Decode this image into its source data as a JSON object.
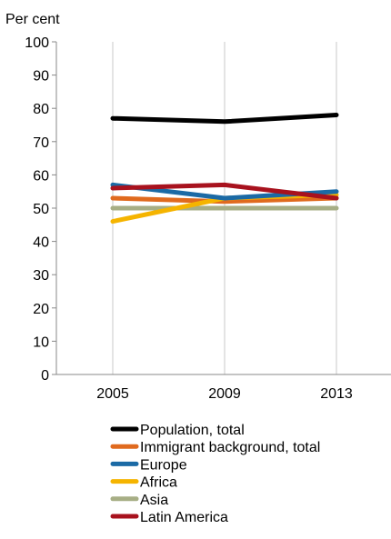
{
  "chart_data": {
    "type": "line",
    "ylabel": "Per cent",
    "x": [
      "2005",
      "2009",
      "2013"
    ],
    "ylim": [
      0,
      100
    ],
    "yticks": [
      "0",
      "10",
      "20",
      "30",
      "40",
      "50",
      "60",
      "70",
      "80",
      "90",
      "100"
    ],
    "grid": "vertical",
    "legend": "bottom",
    "series": [
      {
        "name": "Population, total",
        "color": "#000000",
        "values": [
          77,
          76,
          78
        ]
      },
      {
        "name": "Immigrant background, total",
        "color": "#e06a1e",
        "values": [
          53,
          52,
          53
        ]
      },
      {
        "name": "Europe",
        "color": "#1b6aa5",
        "values": [
          57,
          53,
          55
        ]
      },
      {
        "name": "Africa",
        "color": "#f5b400",
        "values": [
          46,
          53,
          54
        ]
      },
      {
        "name": "Asia",
        "color": "#a7ae85",
        "values": [
          50,
          50,
          50
        ]
      },
      {
        "name": "Latin America",
        "color": "#a8121e",
        "values": [
          56,
          57,
          53
        ]
      }
    ]
  }
}
